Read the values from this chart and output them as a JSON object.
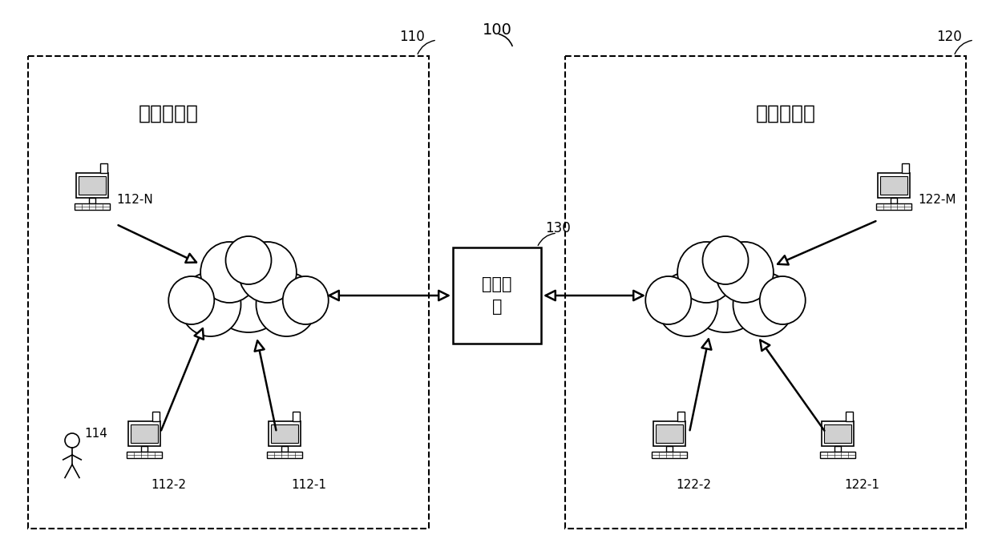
{
  "title_label": "100",
  "box1_label": "110",
  "box2_label": "120",
  "mgmt_label": "130",
  "chain1_text": "第一区块链",
  "chain2_text": "第二区块链",
  "mgmt_text": "管理设\n备",
  "node_labels": {
    "n112N": "112-N",
    "n112_2": "112-2",
    "n112_1": "112-1",
    "n114": "114",
    "n122M": "122-M",
    "n122_2": "122-2",
    "n122_1": "122-1"
  },
  "bg_color": "#ffffff",
  "box_edge_color": "#000000",
  "text_color": "#000000"
}
